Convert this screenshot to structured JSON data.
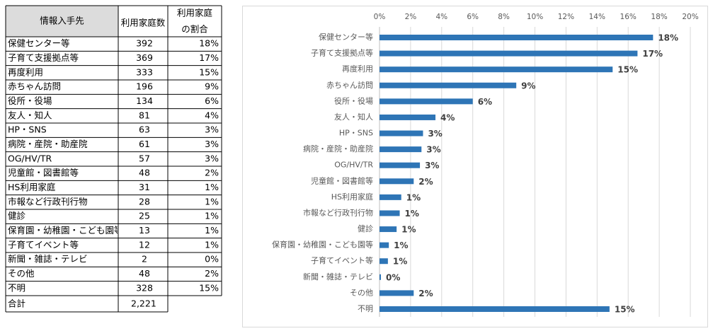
{
  "table": {
    "header": [
      "情報入手先",
      "利用家庭数",
      [
        "利用家庭",
        "の割合"
      ]
    ],
    "rows": [
      [
        "保健センター等",
        "392",
        "18%"
      ],
      [
        "子育て支援拠点等",
        "369",
        "17%"
      ],
      [
        "再度利用",
        "333",
        "15%"
      ],
      [
        "赤ちゃん訪問",
        "196",
        "9%"
      ],
      [
        "役所・役場",
        "134",
        "6%"
      ],
      [
        "友人・知人",
        "81",
        "4%"
      ],
      [
        "HP・SNS",
        "63",
        "3%"
      ],
      [
        "病院・産院・助産院",
        "61",
        "3%"
      ],
      [
        "OG/HV/TR",
        "57",
        "3%"
      ],
      [
        "児童館・図書館等",
        "48",
        "2%"
      ],
      [
        "HS利用家庭",
        "31",
        "1%"
      ],
      [
        "市報など行政刊行物",
        "28",
        "1%"
      ],
      [
        "健診",
        "25",
        "1%"
      ],
      [
        "保育園・幼稚園・こども園等",
        "13",
        "1%"
      ],
      [
        "子育てイベント等",
        "12",
        "1%"
      ],
      [
        "新聞・雑誌・テレビ",
        "2",
        "0%"
      ],
      [
        "その他",
        "48",
        "2%"
      ],
      [
        "不明",
        "328",
        "15%"
      ]
    ],
    "total": [
      "合計",
      "2,221"
    ]
  },
  "chart_data": {
    "type": "hbar",
    "categories": [
      "保健センター等",
      "子育て支援拠点等",
      "再度利用",
      "赤ちゃん訪問",
      "役所・役場",
      "友人・知人",
      "HP・SNS",
      "病院・産院・助産院",
      "OG/HV/TR",
      "児童館・図書館等",
      "HS利用家庭",
      "市報など行政刊行物",
      "健診",
      "保育園・幼稚園・こども園等",
      "子育てイベント等",
      "新聞・雑誌・テレビ",
      "その他",
      "不明"
    ],
    "values": [
      17.6,
      16.6,
      15.0,
      8.8,
      6.0,
      3.6,
      2.8,
      2.7,
      2.6,
      2.2,
      1.4,
      1.3,
      1.1,
      0.6,
      0.54,
      0.09,
      2.2,
      14.8
    ],
    "value_labels": [
      "18%",
      "17%",
      "15%",
      "9%",
      "6%",
      "4%",
      "3%",
      "3%",
      "3%",
      "2%",
      "1%",
      "1%",
      "1%",
      "1%",
      "1%",
      "0%",
      "2%",
      "15%"
    ],
    "color": "#2e75b6",
    "xlim": [
      0,
      20
    ],
    "xticks": [
      {
        "value": 0,
        "label": "0%"
      },
      {
        "value": 2,
        "label": "2%"
      },
      {
        "value": 4,
        "label": "4%"
      },
      {
        "value": 6,
        "label": "6%"
      },
      {
        "value": 8,
        "label": "8%"
      },
      {
        "value": 10,
        "label": "10%"
      },
      {
        "value": 12,
        "label": "12%"
      },
      {
        "value": 14,
        "label": "14%"
      },
      {
        "value": 16,
        "label": "16%"
      },
      {
        "value": 18,
        "label": "18%"
      },
      {
        "value": 20,
        "label": "20%"
      }
    ],
    "grid": true
  }
}
